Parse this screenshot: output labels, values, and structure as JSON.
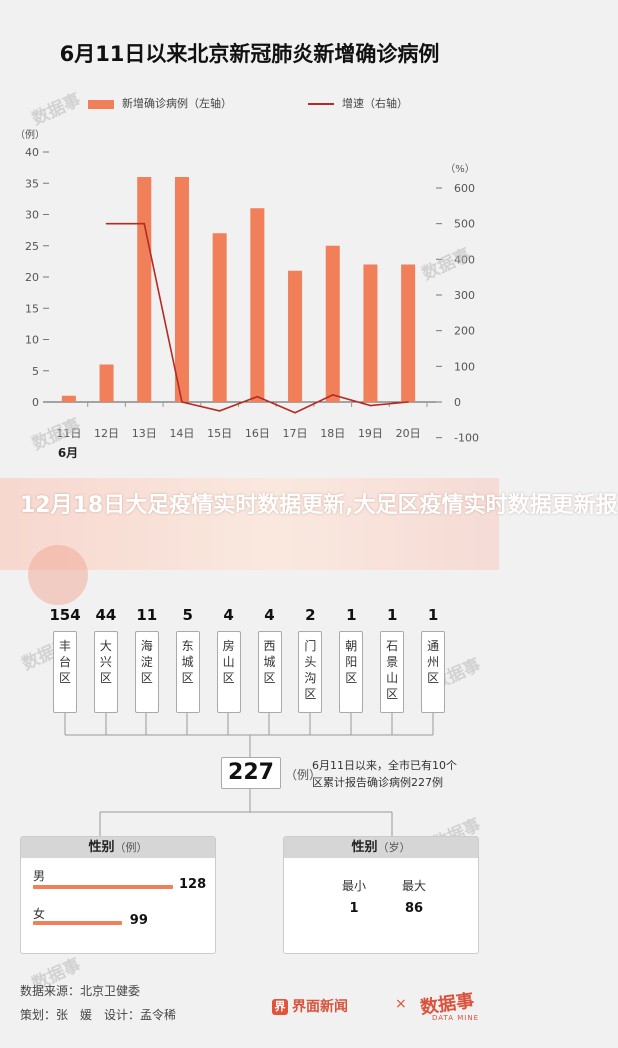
{
  "chart_data": {
    "type": "bar",
    "title": "6月11日以来北京新冠肺炎新增确诊病例",
    "categories": [
      "11日",
      "12日",
      "13日",
      "14日",
      "15日",
      "16日",
      "17日",
      "18日",
      "19日",
      "20日"
    ],
    "month_label": "6月",
    "series": [
      {
        "name": "新增确诊病例（左轴）",
        "type": "bar",
        "color": "#f07f5a",
        "values": [
          1,
          6,
          36,
          36,
          27,
          31,
          21,
          25,
          22,
          22
        ]
      },
      {
        "name": "增速（右轴）",
        "type": "line",
        "color": "#b52b24",
        "values": [
          null,
          500,
          500,
          0,
          -25,
          15,
          -30,
          20,
          -10,
          0
        ]
      }
    ],
    "left_axis": {
      "unit": "（例）",
      "ticks": [
        0,
        5,
        10,
        15,
        20,
        25,
        30,
        35,
        40
      ],
      "ylim": [
        0,
        40
      ]
    },
    "right_axis": {
      "unit": "（%）",
      "ticks": [
        -100,
        0,
        100,
        200,
        300,
        400,
        500,
        600
      ],
      "ylim": [
        -100,
        650
      ]
    }
  },
  "banner": {
    "text": "12月18日大足疫情实时数据更新,大足区疫情实时数据更新报"
  },
  "districts": [
    {
      "count": "154",
      "name": "丰台区"
    },
    {
      "count": "44",
      "name": "大兴区"
    },
    {
      "count": "11",
      "name": "海淀区"
    },
    {
      "count": "5",
      "name": "东城区"
    },
    {
      "count": "4",
      "name": "房山区"
    },
    {
      "count": "4",
      "name": "西城区"
    },
    {
      "count": "2",
      "name": "门头沟区"
    },
    {
      "count": "1",
      "name": "朝阳区"
    },
    {
      "count": "1",
      "name": "石景山区"
    },
    {
      "count": "1",
      "name": "通州区"
    }
  ],
  "total": {
    "value": "227",
    "unit": "（例）",
    "note_line1": "6月11日以来，全市已有10个",
    "note_line2": "区累计报告确诊病例227例"
  },
  "gender": {
    "title": "性别",
    "unit": "（例）",
    "male_label": "男",
    "male_value": 128,
    "female_label": "女",
    "female_value": 99
  },
  "age": {
    "title": "性别",
    "unit": "（岁）",
    "min_label": "最小",
    "min_value": "1",
    "max_label": "最大",
    "max_value": "86"
  },
  "footer": {
    "source": "数据来源：北京卫健委",
    "credits": "策划：张　媛　设计：孟令稀"
  },
  "brand": {
    "name": "界面新闻",
    "x": "×",
    "partner": "数据事",
    "partner_sub": "DATA MINE"
  },
  "watermark": "数据事",
  "colors": {
    "bar": "#f07f5a",
    "line": "#b52b24",
    "accent": "#d9533c"
  }
}
